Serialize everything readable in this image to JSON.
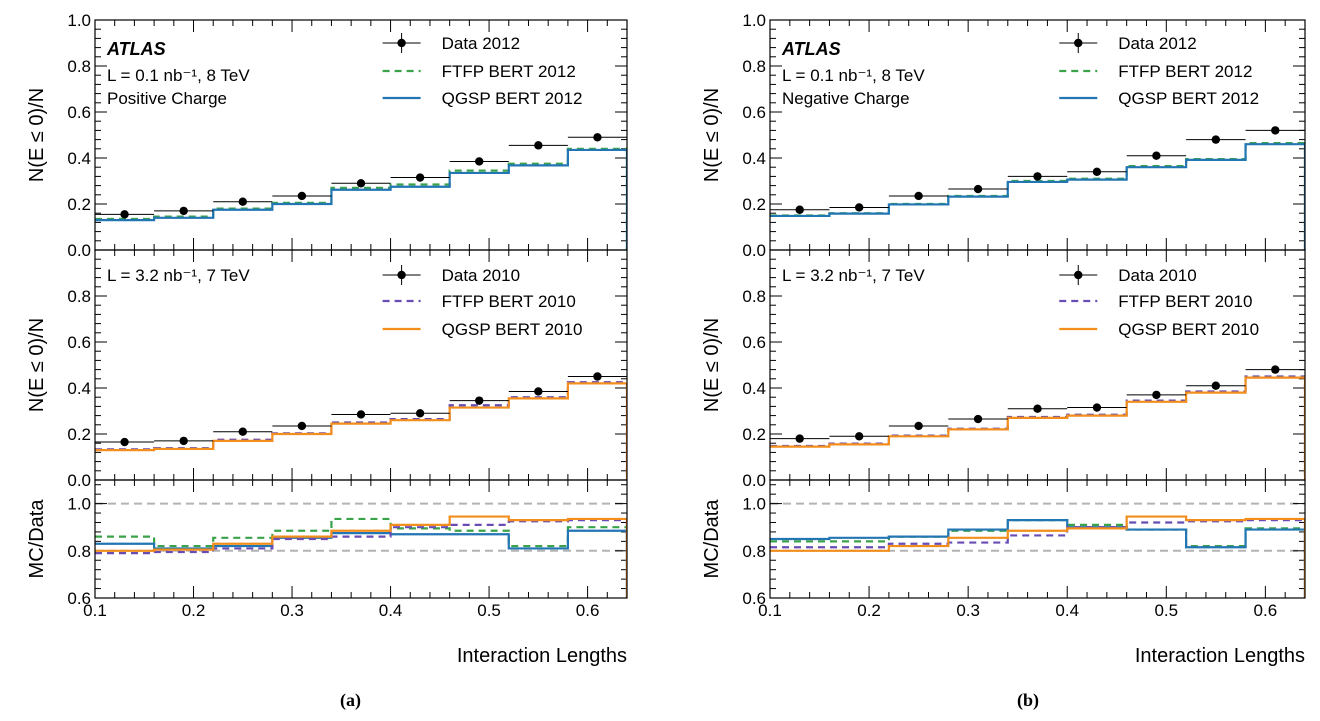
{
  "panels": [
    {
      "caption": "(a)",
      "info": "Positive Charge",
      "xlabel": "Interaction Lengths",
      "xlim": [
        0.1,
        0.64
      ],
      "xticks": [
        "0.1",
        "0.2",
        "0.3",
        "0.4",
        "0.5",
        "0.6"
      ],
      "top": {
        "ylabel": "N(E ≤ 0)/N",
        "ylim": [
          0,
          1.0
        ],
        "yticks": [
          "0.0",
          "0.2",
          "0.4",
          "0.6",
          "0.8",
          "1.0"
        ],
        "experiment": "ATLAS",
        "lumi": "L = 0.1 nb⁻¹, 8 TeV"
      },
      "mid": {
        "ylabel": "N(E ≤ 0)/N",
        "ylim": [
          0,
          1.0
        ],
        "yticks": [
          "0.0",
          "0.2",
          "0.4",
          "0.6",
          "0.8"
        ],
        "lumi": "L = 3.2 nb⁻¹, 7 TeV"
      },
      "ratio": {
        "ylabel": "MC/Data",
        "ylim": [
          0.6,
          1.1
        ],
        "yticks": [
          "0.6",
          "0.8",
          "1.0"
        ]
      }
    },
    {
      "caption": "(b)",
      "info": "Negative Charge",
      "xlabel": "Interaction Lengths",
      "xlim": [
        0.1,
        0.64
      ],
      "xticks": [
        "0.1",
        "0.2",
        "0.3",
        "0.4",
        "0.5",
        "0.6"
      ],
      "top": {
        "ylabel": "N(E ≤ 0)/N",
        "ylim": [
          0,
          1.0
        ],
        "yticks": [
          "0.0",
          "0.2",
          "0.4",
          "0.6",
          "0.8",
          "1.0"
        ],
        "experiment": "ATLAS",
        "lumi": "L = 0.1 nb⁻¹, 8 TeV"
      },
      "mid": {
        "ylabel": "N(E ≤ 0)/N",
        "ylim": [
          0,
          1.0
        ],
        "yticks": [
          "0.0",
          "0.2",
          "0.4",
          "0.6",
          "0.8"
        ],
        "lumi": "L = 3.2 nb⁻¹, 7 TeV"
      },
      "ratio": {
        "ylabel": "MC/Data",
        "ylim": [
          0.6,
          1.1
        ],
        "yticks": [
          "0.6",
          "0.8",
          "1.0"
        ]
      }
    }
  ],
  "legend": {
    "top": [
      {
        "label": "Data 2012",
        "style": "data"
      },
      {
        "label": "FTFP BERT 2012",
        "style": "dashed",
        "color": "#3aa34a"
      },
      {
        "label": "QGSP BERT 2012",
        "style": "solid",
        "color": "#2276b4"
      }
    ],
    "mid": [
      {
        "label": "Data 2010",
        "style": "data"
      },
      {
        "label": "FTFP BERT 2010",
        "style": "dashed",
        "color": "#6a4cb5"
      },
      {
        "label": "QGSP BERT 2010",
        "style": "solid",
        "color": "#f28e1c"
      }
    ]
  },
  "colors": {
    "ftfp_2012": "#3aa34a",
    "qgsp_2012": "#2276b4",
    "ftfp_2010": "#6a4cb5",
    "qgsp_2010": "#f28e1c",
    "reference_line": "#b3b3b3"
  },
  "chart_data": [
    {
      "type": "line",
      "title": "(a) Positive Charge",
      "bin_edges": [
        0.1,
        0.16,
        0.22,
        0.28,
        0.34,
        0.4,
        0.46,
        0.52,
        0.58,
        0.64
      ],
      "x": [
        0.13,
        0.19,
        0.25,
        0.31,
        0.37,
        0.43,
        0.49,
        0.55,
        0.61
      ],
      "xlabel": "Interaction Lengths",
      "top": {
        "ylabel": "N(E ≤ 0)/N",
        "ylim": [
          0,
          1.0
        ],
        "series": [
          {
            "name": "Data 2012",
            "values": [
              0.155,
              0.17,
              0.21,
              0.235,
              0.29,
              0.315,
              0.385,
              0.455,
              0.49
            ]
          },
          {
            "name": "FTFP BERT 2012",
            "values": [
              0.135,
              0.145,
              0.18,
              0.205,
              0.27,
              0.285,
              0.345,
              0.375,
              0.44
            ]
          },
          {
            "name": "QGSP BERT 2012",
            "values": [
              0.13,
              0.14,
              0.175,
              0.2,
              0.262,
              0.275,
              0.335,
              0.368,
              0.435
            ]
          }
        ]
      },
      "mid": {
        "ylabel": "N(E ≤ 0)/N",
        "ylim": [
          0,
          1.0
        ],
        "series": [
          {
            "name": "Data 2010",
            "values": [
              0.165,
              0.17,
              0.21,
              0.235,
              0.285,
              0.29,
              0.345,
              0.385,
              0.45
            ]
          },
          {
            "name": "FTFP BERT 2010",
            "values": [
              0.13,
              0.135,
              0.17,
              0.2,
              0.245,
              0.26,
              0.315,
              0.355,
              0.42
            ]
          },
          {
            "name": "QGSP BERT 2010",
            "values": [
              0.133,
              0.138,
              0.175,
              0.203,
              0.25,
              0.265,
              0.325,
              0.36,
              0.425
            ]
          }
        ]
      },
      "ratio": {
        "ylabel": "MC/Data",
        "ylim": [
          0.6,
          1.1
        ],
        "reference_lines": [
          0.8,
          1.0
        ],
        "series": [
          {
            "name": "FTFP BERT 2012",
            "values": [
              0.86,
              0.82,
              0.855,
              0.885,
              0.935,
              0.895,
              0.885,
              0.82,
              0.9
            ]
          },
          {
            "name": "QGSP BERT 2012",
            "values": [
              0.83,
              0.81,
              0.82,
              0.855,
              0.875,
              0.87,
              0.87,
              0.81,
              0.885
            ]
          },
          {
            "name": "FTFP BERT 2010",
            "values": [
              0.79,
              0.795,
              0.81,
              0.85,
              0.86,
              0.9,
              0.91,
              0.925,
              0.93
            ]
          },
          {
            "name": "QGSP BERT 2010",
            "values": [
              0.8,
              0.805,
              0.83,
              0.86,
              0.885,
              0.91,
              0.945,
              0.93,
              0.935
            ]
          }
        ]
      }
    },
    {
      "type": "line",
      "title": "(b) Negative Charge",
      "bin_edges": [
        0.1,
        0.16,
        0.22,
        0.28,
        0.34,
        0.4,
        0.46,
        0.52,
        0.58,
        0.64
      ],
      "x": [
        0.13,
        0.19,
        0.25,
        0.31,
        0.37,
        0.43,
        0.49,
        0.55,
        0.61
      ],
      "xlabel": "Interaction Lengths",
      "top": {
        "ylabel": "N(E ≤ 0)/N",
        "ylim": [
          0,
          1.0
        ],
        "series": [
          {
            "name": "Data 2012",
            "values": [
              0.175,
              0.185,
              0.235,
              0.265,
              0.32,
              0.34,
              0.41,
              0.48,
              0.52
            ]
          },
          {
            "name": "FTFP BERT 2012",
            "values": [
              0.15,
              0.16,
              0.2,
              0.235,
              0.3,
              0.31,
              0.365,
              0.395,
              0.465
            ]
          },
          {
            "name": "QGSP BERT 2012",
            "values": [
              0.148,
              0.158,
              0.198,
              0.232,
              0.296,
              0.306,
              0.36,
              0.392,
              0.46
            ]
          }
        ]
      },
      "mid": {
        "ylabel": "N(E ≤ 0)/N",
        "ylim": [
          0,
          1.0
        ],
        "series": [
          {
            "name": "Data 2010",
            "values": [
              0.18,
              0.19,
              0.235,
              0.265,
              0.31,
              0.315,
              0.37,
              0.41,
              0.48
            ]
          },
          {
            "name": "FTFP BERT 2010",
            "values": [
              0.145,
              0.155,
              0.19,
              0.22,
              0.27,
              0.28,
              0.34,
              0.38,
              0.445
            ]
          },
          {
            "name": "QGSP BERT 2010",
            "values": [
              0.148,
              0.158,
              0.193,
              0.223,
              0.274,
              0.284,
              0.345,
              0.385,
              0.45
            ]
          }
        ]
      },
      "ratio": {
        "ylabel": "MC/Data",
        "ylim": [
          0.6,
          1.1
        ],
        "reference_lines": [
          0.8,
          1.0
        ],
        "series": [
          {
            "name": "FTFP BERT 2012",
            "values": [
              0.84,
              0.84,
              0.86,
              0.885,
              0.93,
              0.91,
              0.89,
              0.82,
              0.895
            ]
          },
          {
            "name": "QGSP BERT 2012",
            "values": [
              0.85,
              0.855,
              0.86,
              0.89,
              0.93,
              0.9,
              0.89,
              0.815,
              0.89
            ]
          },
          {
            "name": "FTFP BERT 2010",
            "values": [
              0.815,
              0.815,
              0.83,
              0.835,
              0.865,
              0.9,
              0.92,
              0.925,
              0.93
            ]
          },
          {
            "name": "QGSP BERT 2010",
            "values": [
              0.8,
              0.8,
              0.82,
              0.855,
              0.885,
              0.895,
              0.945,
              0.93,
              0.935
            ]
          }
        ]
      }
    }
  ]
}
